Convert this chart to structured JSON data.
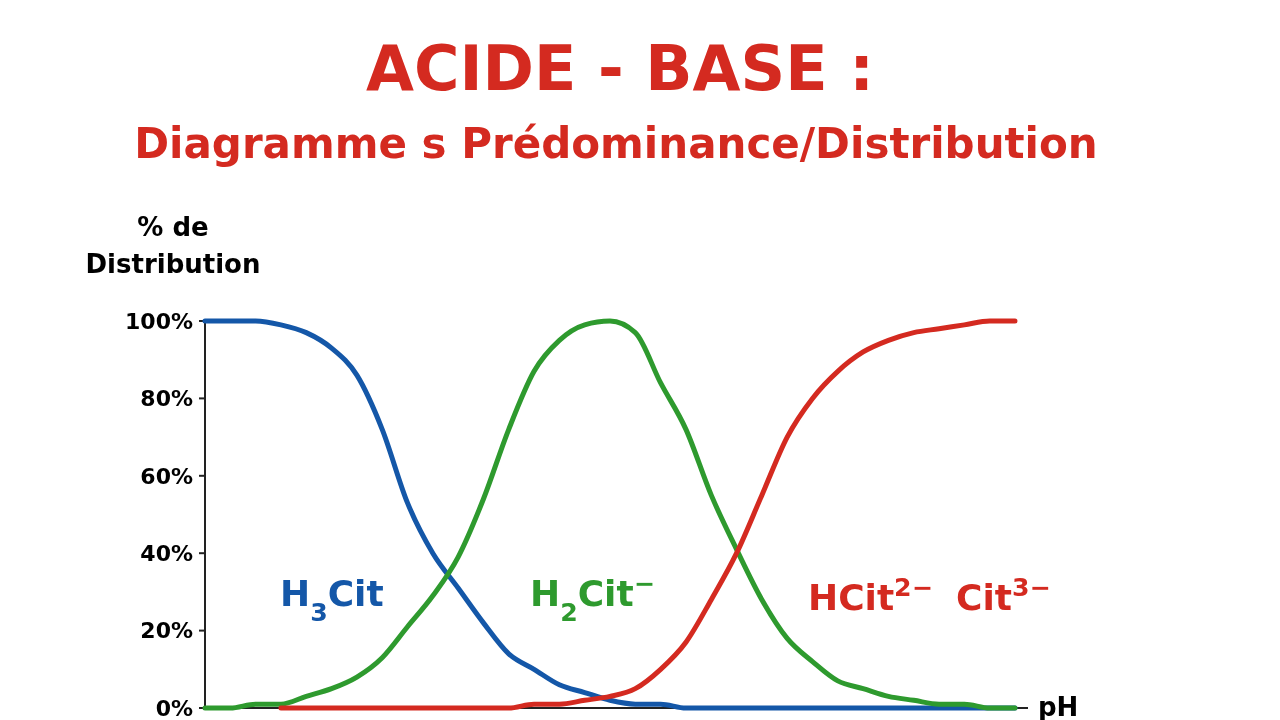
{
  "chart_data": {
    "type": "line",
    "title": "ACIDE - BASE :",
    "subtitle": "Diagramme s Prédominance/Distribution",
    "ylabel": "% de\nDistribution",
    "xlabel": "pH",
    "categories": [
      null,
      null,
      null,
      null,
      null,
      null,
      null,
      null,
      null,
      null,
      null,
      null,
      null,
      null,
      null,
      null,
      null,
      null,
      null,
      null,
      null,
      null,
      null,
      null,
      null,
      null,
      null,
      null,
      null,
      null,
      null,
      null,
      null
    ],
    "ylim": [
      0,
      100
    ],
    "yticks": [
      {
        "value": 0,
        "label": "0%"
      },
      {
        "value": 20,
        "label": "20%"
      },
      {
        "value": 40,
        "label": "40%"
      },
      {
        "value": 60,
        "label": "60%"
      },
      {
        "value": 80,
        "label": "80%"
      },
      {
        "value": 100,
        "label": "100%"
      }
    ],
    "grid": false,
    "marker": "none",
    "line_style": "solid",
    "series": [
      {
        "color": "#1457a8",
        "values": [
          100,
          100,
          100,
          99,
          97,
          93,
          86,
          72,
          53,
          40,
          31,
          22,
          14,
          10,
          6,
          4,
          2,
          1,
          1,
          0,
          0,
          0,
          0,
          0,
          0,
          0,
          0,
          0,
          0,
          0,
          0,
          0,
          0
        ]
      },
      {
        "color": "#2e9a2e",
        "values": [
          0,
          0,
          1,
          1,
          3,
          5,
          8,
          13,
          21,
          29,
          39,
          54,
          72,
          87,
          95,
          99,
          100,
          97,
          84,
          72,
          55,
          41,
          28,
          18,
          12,
          7,
          5,
          3,
          2,
          1,
          1,
          0,
          0
        ]
      },
      {
        "color": "#d42a20",
        "values": [
          null,
          null,
          null,
          0,
          0,
          0,
          0,
          0,
          0,
          0,
          0,
          0,
          0,
          1,
          1,
          2,
          3,
          5,
          10,
          17,
          28,
          40,
          55,
          70,
          80,
          87,
          92,
          95,
          97,
          98,
          99,
          100,
          100
        ]
      }
    ],
    "annotations": [
      "H$_{3}$Cit",
      "H$_{2}$Cit$^{−}$",
      "HCit$^{2−}$",
      "Cit$^{3−}$"
    ]
  }
}
